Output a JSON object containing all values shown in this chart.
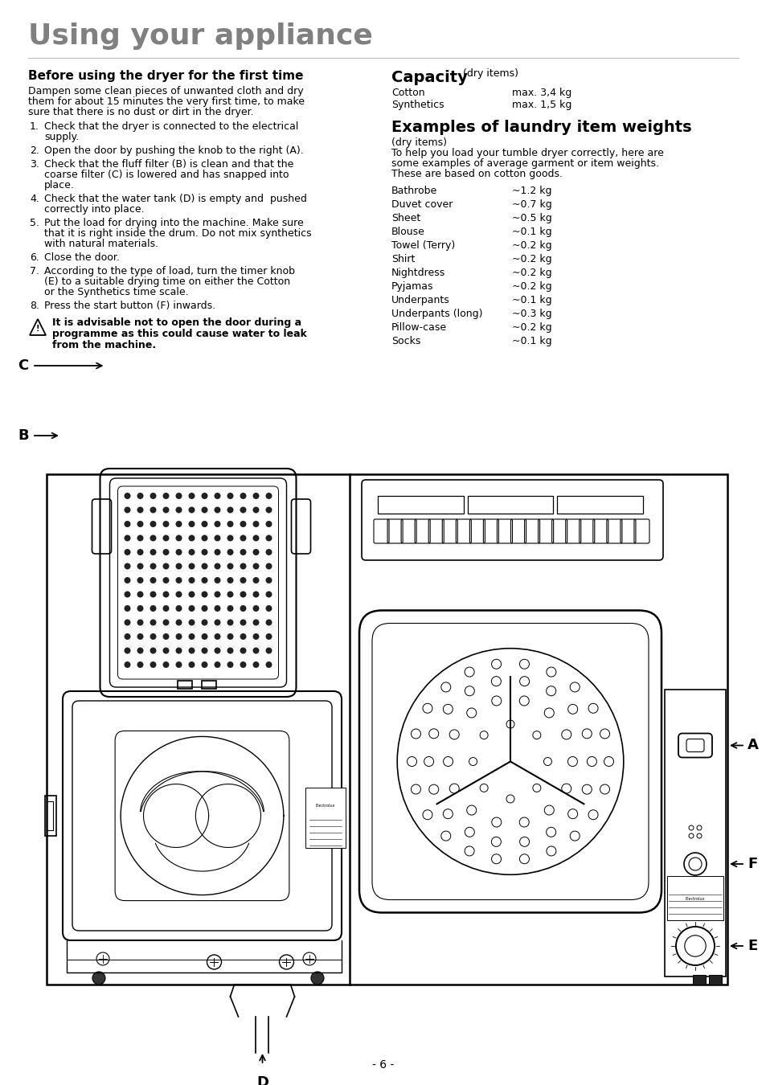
{
  "title": "Using your appliance",
  "left_heading": "Before using the dryer for the first time",
  "right_heading1": "Capacity",
  "right_heading1_sub": " (dry items)",
  "capacity_items": [
    [
      "Cotton",
      "max. 3,4 kg"
    ],
    [
      "Synthetics",
      "max. 1,5 kg"
    ]
  ],
  "right_heading2": "Examples of laundry item weights",
  "right_heading2_sub": "(dry items)",
  "laundry_items": [
    [
      "Bathrobe",
      "~1.2 kg"
    ],
    [
      "Duvet cover",
      "~0.7 kg"
    ],
    [
      "Sheet",
      "~0.5 kg"
    ],
    [
      "Blouse",
      "~0.1 kg"
    ],
    [
      "Towel (Terry)",
      "~0.2 kg"
    ],
    [
      "Shirt",
      "~0.2 kg"
    ],
    [
      "Nightdress",
      "~0.2 kg"
    ],
    [
      "Pyjamas",
      "~0.2 kg"
    ],
    [
      "Underpants",
      "~0.1 kg"
    ],
    [
      "Underpants (long)",
      "~0.3 kg"
    ],
    [
      "Pillow-case",
      "~0.2 kg"
    ],
    [
      "Socks",
      "~0.1 kg"
    ]
  ],
  "page_number": "- 6 -",
  "bg_color": "#ffffff",
  "text_color": "#000000",
  "title_color": "#808080"
}
